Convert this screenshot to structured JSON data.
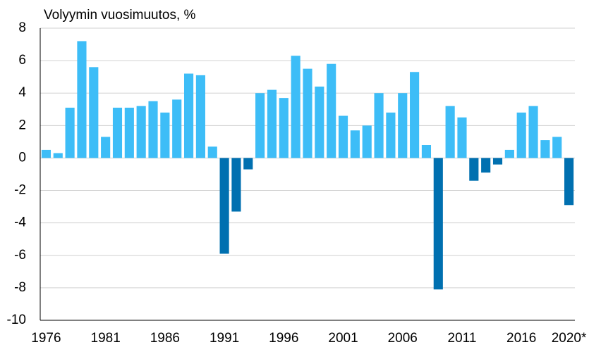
{
  "chart_data": {
    "type": "bar",
    "title": "Volyymin vuosimuutos, %",
    "categories": [
      "1976",
      null,
      null,
      null,
      null,
      "1981",
      null,
      null,
      null,
      null,
      "1986",
      null,
      null,
      null,
      null,
      "1991",
      null,
      null,
      null,
      null,
      "1996",
      null,
      null,
      null,
      null,
      "2001",
      null,
      null,
      null,
      null,
      "2006",
      null,
      null,
      null,
      null,
      "2011",
      null,
      null,
      null,
      null,
      "2016",
      null,
      null,
      null,
      "2020*"
    ],
    "values": [
      0.5,
      0.3,
      3.1,
      7.2,
      5.6,
      1.3,
      3.1,
      3.1,
      3.2,
      3.5,
      2.8,
      3.6,
      5.2,
      5.1,
      0.7,
      -5.9,
      -3.3,
      -0.7,
      4.0,
      4.2,
      3.7,
      6.3,
      5.5,
      4.4,
      5.8,
      2.6,
      1.7,
      2.0,
      4.0,
      2.8,
      4.0,
      5.3,
      0.8,
      -8.1,
      3.2,
      2.5,
      -1.4,
      -0.9,
      -0.4,
      0.5,
      2.8,
      3.2,
      1.1,
      1.3,
      -2.9
    ],
    "color": "#3dbdf7",
    "negative_color": "#0070b0",
    "ylim": [
      -10,
      8
    ],
    "yticks": [
      -10,
      -8,
      -6,
      -4,
      -2,
      0,
      2,
      4,
      6,
      8
    ],
    "grid": true
  }
}
